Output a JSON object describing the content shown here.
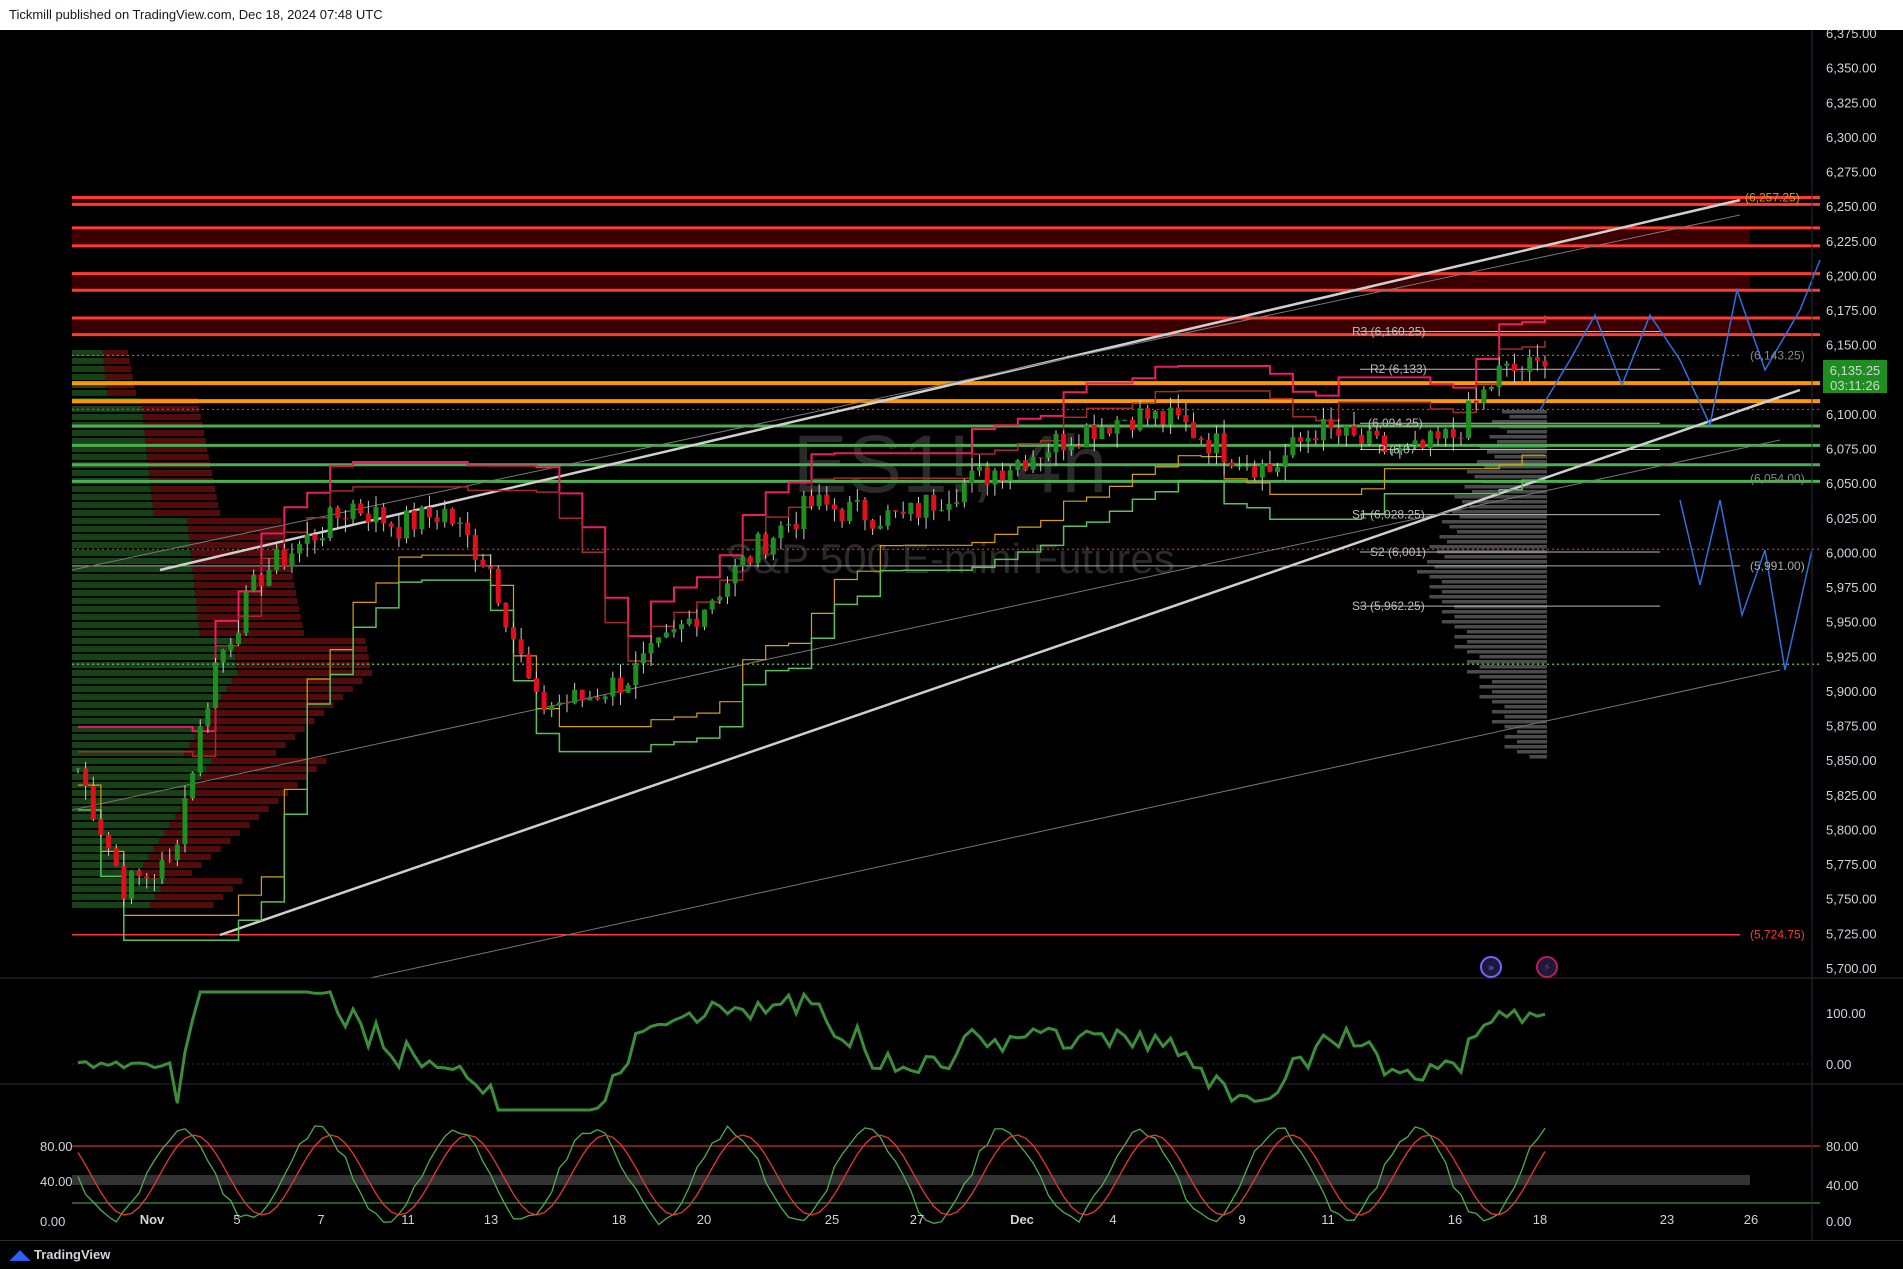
{
  "header": {
    "caption": "Tickmill published on TradingView.com, Dec 18, 2024 07:48 UTC"
  },
  "footer": {
    "brand": "TradingView"
  },
  "watermark": {
    "symbol": "ES1!, 4h",
    "name": "S&P 500 E-mini Futures"
  },
  "colors": {
    "up": "#1e8f1e",
    "down": "#e0101a",
    "bg": "#000000",
    "axis": "#d1d4dc",
    "resistance": "#ff3b30",
    "orange": "#ff9800",
    "support": "#4caf50",
    "projection": "#2f6fe0"
  },
  "price_axis": {
    "ticks": [
      "6,375.00",
      "6,350.00",
      "6,325.00",
      "6,300.00",
      "6,275.00",
      "6,250.00",
      "6,225.00",
      "6,200.00",
      "6,175.00",
      "6,150.00",
      "6,125.00",
      "6,100.00",
      "6,075.00",
      "6,050.00",
      "6,025.00",
      "6,000.00",
      "5,975.00",
      "5,950.00",
      "5,925.00",
      "5,900.00",
      "5,875.00",
      "5,850.00",
      "5,825.00",
      "5,800.00",
      "5,775.00",
      "5,750.00",
      "5,725.00",
      "5,700.00"
    ],
    "last_price": "6,135.25",
    "countdown": "03:11:26"
  },
  "time_axis": {
    "labels": [
      "Nov",
      "5",
      "7",
      "11",
      "13",
      "18",
      "20",
      "25",
      "27",
      "Dec",
      "4",
      "9",
      "11",
      "16",
      "18",
      "23",
      "26"
    ]
  },
  "pivots": {
    "R3": "R3 (6,160.25)",
    "R2": "R2 (6,133)",
    "R1": "(6,094.25)",
    "P": "P (6,07",
    "S1": "S1 (6,028.25)",
    "S2": "S2 (6,001)",
    "S3": "S3 (5,962.25)"
  },
  "level_labels": {
    "top": "(6,257.25)",
    "high": "(6,143.25)",
    "mid": "(6,054.00)",
    "low": "(5,991.00)",
    "bottom": "(5,724.75)"
  },
  "osc1_axis": [
    "100.00",
    "0.00"
  ],
  "osc2_axis": [
    "80.00",
    "40.00",
    "0.00"
  ],
  "osc2_axis_right": [
    "80.00",
    "40.00",
    "0.00"
  ],
  "chart_data": {
    "type": "line",
    "title": "",
    "series": [
      {
        "name": "",
        "x": [
          "Nov 1",
          "Nov 4",
          "Nov 5",
          "Nov 6",
          "Nov 7",
          "Nov 8",
          "Nov 11",
          "Nov 12",
          "Nov 13",
          "Nov 14",
          "Nov 15",
          "Nov 18",
          "Nov 19",
          "Nov 20",
          "Nov 21",
          "Nov 22",
          "Nov 25",
          "Nov 26",
          "Nov 27",
          "Nov 29",
          "Dec 2",
          "Dec 3",
          "Dec 4",
          "Dec 5",
          "Dec 6",
          "Dec 9",
          "Dec 10",
          "Dec 11",
          "Dec 12",
          "Dec 13",
          "Dec 16",
          "Dec 17",
          "Dec 18"
        ],
        "values": [
          5845,
          5760,
          5775,
          5920,
          5985,
          6010,
          6035,
          6020,
          6030,
          5990,
          5890,
          5895,
          5910,
          5940,
          5975,
          6010,
          6035,
          6030,
          6025,
          6045,
          6060,
          6075,
          6090,
          6100,
          6095,
          6075,
          6060,
          6090,
          6080,
          6070,
          6085,
          6130,
          6135
        ]
      }
    ],
    "ylim": [
      5695,
      6385
    ],
    "xlabel": "",
    "ylabel": ""
  }
}
